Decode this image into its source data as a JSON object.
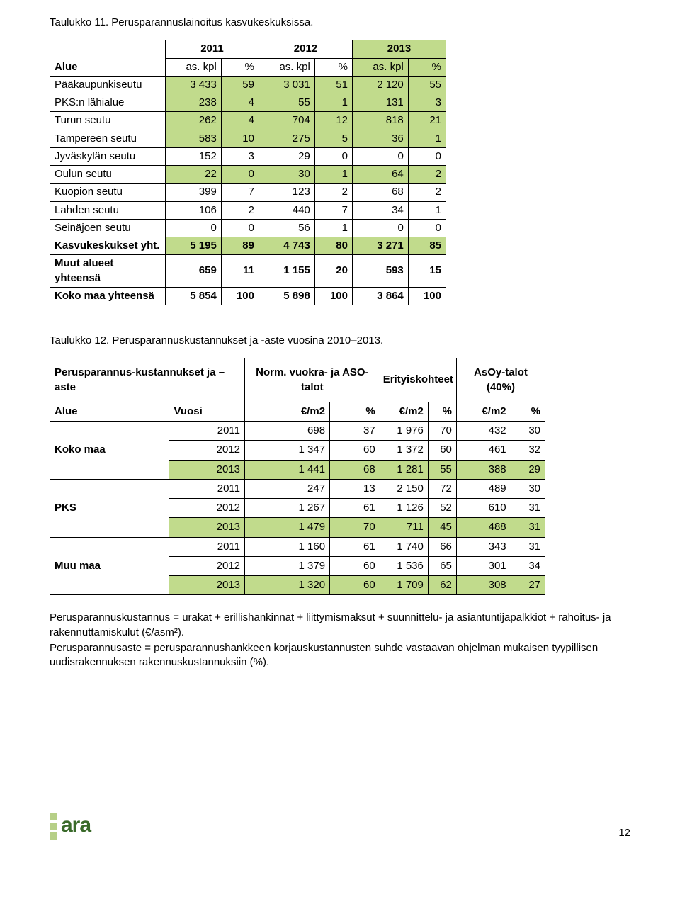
{
  "colors": {
    "green": "#c1db8c",
    "border": "#000000",
    "bg": "#ffffff",
    "text": "#000000",
    "logo_green": "#b6cf87",
    "logo_text": "#3a6a2a"
  },
  "table1": {
    "caption": "Taulukko 11. Perusparannuslainoitus kasvukeskuksissa.",
    "years": [
      "2011",
      "2012",
      "2013"
    ],
    "alue_header": "Alue",
    "sub_headers": [
      "as. kpl",
      "%",
      "as. kpl",
      "%",
      "as. kpl",
      "%"
    ],
    "rows": [
      {
        "label": "Pääkaupunkiseutu",
        "green": true,
        "cells": [
          "3 433",
          "59",
          "3 031",
          "51",
          "2 120",
          "55"
        ]
      },
      {
        "label": "PKS:n lähialue",
        "green": true,
        "cells": [
          "238",
          "4",
          "55",
          "1",
          "131",
          "3"
        ]
      },
      {
        "label": "Turun seutu",
        "green": true,
        "cells": [
          "262",
          "4",
          "704",
          "12",
          "818",
          "21"
        ]
      },
      {
        "label": "Tampereen seutu",
        "green": true,
        "cells": [
          "583",
          "10",
          "275",
          "5",
          "36",
          "1"
        ]
      },
      {
        "label": "Jyväskylän seutu",
        "green": false,
        "cells": [
          "152",
          "3",
          "29",
          "0",
          "0",
          "0"
        ]
      },
      {
        "label": "Oulun seutu",
        "green": true,
        "cells": [
          "22",
          "0",
          "30",
          "1",
          "64",
          "2"
        ]
      },
      {
        "label": "Kuopion seutu",
        "green": false,
        "cells": [
          "399",
          "7",
          "123",
          "2",
          "68",
          "2"
        ]
      },
      {
        "label": "Lahden seutu",
        "green": false,
        "cells": [
          "106",
          "2",
          "440",
          "7",
          "34",
          "1"
        ]
      },
      {
        "label": "Seinäjoen seutu",
        "green": false,
        "cells": [
          "0",
          "0",
          "56",
          "1",
          "0",
          "0"
        ]
      }
    ],
    "total_rows": [
      {
        "label": "Kasvukeskukset yht.",
        "green": true,
        "cells": [
          "5 195",
          "89",
          "4 743",
          "80",
          "3 271",
          "85"
        ]
      },
      {
        "label": "Muut alueet yhteensä",
        "green": false,
        "cells": [
          "659",
          "11",
          "1 155",
          "20",
          "593",
          "15"
        ]
      },
      {
        "label": "Koko maa yhteensä",
        "green": false,
        "cells": [
          "5 854",
          "100",
          "5 898",
          "100",
          "3 864",
          "100"
        ]
      }
    ]
  },
  "table2": {
    "caption": "Taulukko 12. Perusparannuskustannukset ja -aste vuosina  2010–2013.",
    "block_header": "Perusparannus-kustannukset ja – aste",
    "col_groups": {
      "g1": "Norm. vuokra- ja ASO-talot",
      "g2": "Erityiskohteet",
      "g3": "AsOy-talot (40%)"
    },
    "sub_row": {
      "alue": "Alue",
      "vuosi": "Vuosi",
      "unit": "€/m2",
      "pct": "%"
    },
    "groups": [
      {
        "name": "Koko maa",
        "rows": [
          {
            "year": "2011",
            "green": false,
            "cells": [
              "698",
              "37",
              "1 976",
              "70",
              "432",
              "30"
            ]
          },
          {
            "year": "2012",
            "green": false,
            "cells": [
              "1 347",
              "60",
              "1 372",
              "60",
              "461",
              "32"
            ]
          },
          {
            "year": "2013",
            "green": true,
            "cells": [
              "1 441",
              "68",
              "1 281",
              "55",
              "388",
              "29"
            ]
          }
        ]
      },
      {
        "name": "PKS",
        "rows": [
          {
            "year": "2011",
            "green": false,
            "cells": [
              "247",
              "13",
              "2 150",
              "72",
              "489",
              "30"
            ]
          },
          {
            "year": "2012",
            "green": false,
            "cells": [
              "1 267",
              "61",
              "1 126",
              "52",
              "610",
              "31"
            ]
          },
          {
            "year": "2013",
            "green": true,
            "cells": [
              "1 479",
              "70",
              "711",
              "45",
              "488",
              "31"
            ]
          }
        ]
      },
      {
        "name": "Muu maa",
        "rows": [
          {
            "year": "2011",
            "green": false,
            "cells": [
              "1 160",
              "61",
              "1 740",
              "66",
              "343",
              "31"
            ]
          },
          {
            "year": "2012",
            "green": false,
            "cells": [
              "1 379",
              "60",
              "1 536",
              "65",
              "301",
              "34"
            ]
          },
          {
            "year": "2013",
            "green": true,
            "cells": [
              "1 320",
              "60",
              "1 709",
              "62",
              "308",
              "27"
            ]
          }
        ]
      }
    ]
  },
  "notes": {
    "line1": "Perusparannuskustannus = urakat + erillishankinnat + liittymismaksut + suunnittelu- ja asiantuntijapalkkiot + rahoitus- ja  rakennuttamiskulut (€/asm²).",
    "line2": "Perusparannusaste = perusparannushankkeen korjauskustannusten suhde vastaavan ohjelman mukaisen tyypillisen uudisrakennuksen rakennuskustannuksiin (%)."
  },
  "footer": {
    "logo": "ara",
    "page": "12"
  }
}
